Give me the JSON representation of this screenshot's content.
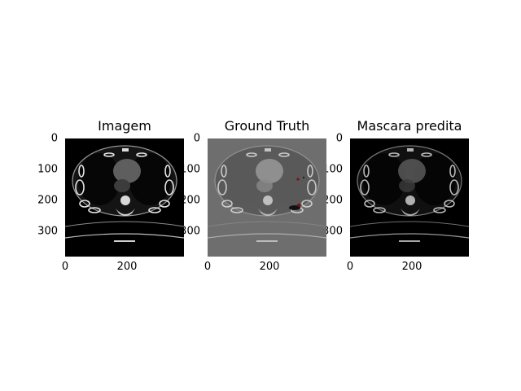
{
  "figure": {
    "panels": [
      {
        "title": "Imagem",
        "variant": "ct",
        "xticks": [
          "0",
          "200"
        ],
        "yticks": [
          "0",
          "100",
          "200",
          "300"
        ]
      },
      {
        "title": "Ground Truth",
        "variant": "gt",
        "xticks": [
          "0",
          "200"
        ],
        "yticks": [
          "0",
          "100",
          "200",
          "300"
        ]
      },
      {
        "title": "Mascara predita",
        "variant": "pred",
        "xticks": [
          "0",
          "200"
        ],
        "yticks": [
          "0",
          "100",
          "200",
          "300"
        ]
      }
    ]
  }
}
